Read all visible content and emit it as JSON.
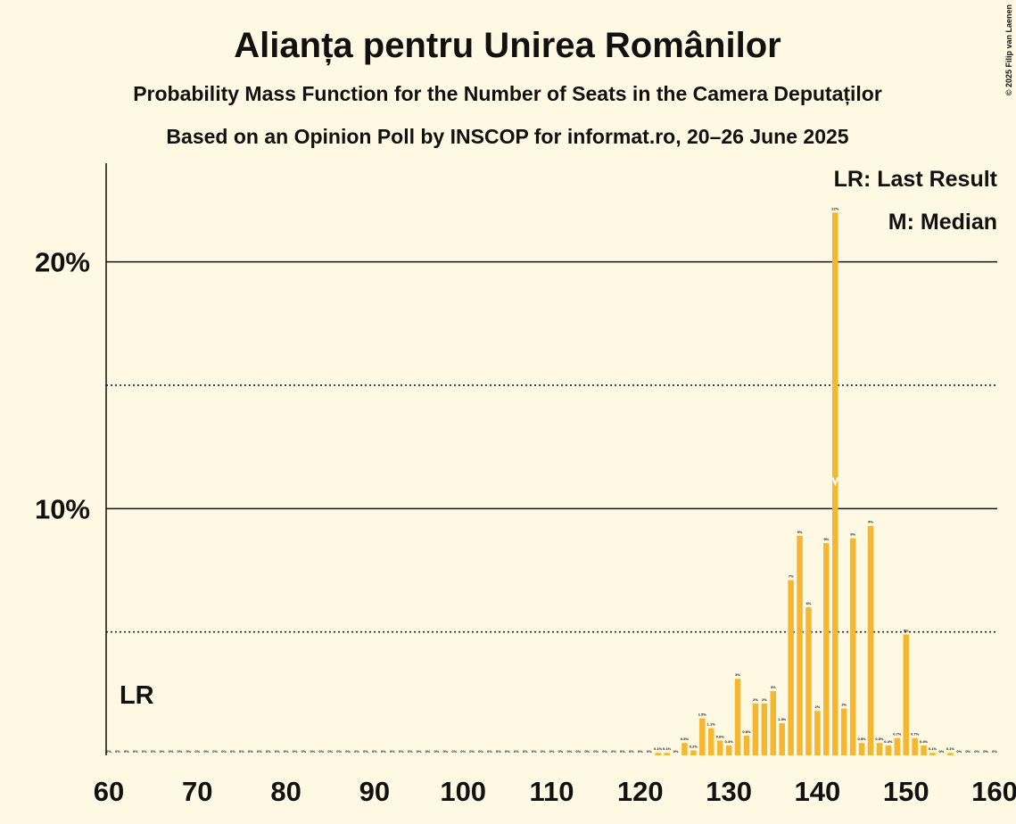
{
  "chart_data": {
    "type": "bar",
    "title": "Alianța pentru Unirea Românilor",
    "subtitle": "Probability Mass Function for the Number of Seats in the Camera Deputaților",
    "subtitle2": "Based on an Opinion Poll by INSCOP for informat.ro, 20–26 June 2025",
    "copyright": "© 2025 Filip van Laenen",
    "legend": [
      "LR: Last Result",
      "M: Median"
    ],
    "last_result": 60,
    "last_result_label": "LR",
    "median": 142,
    "color": "#f5b730",
    "x": [
      60,
      61,
      62,
      63,
      64,
      65,
      66,
      67,
      68,
      69,
      70,
      71,
      72,
      73,
      74,
      75,
      76,
      77,
      78,
      79,
      80,
      81,
      82,
      83,
      84,
      85,
      86,
      87,
      88,
      89,
      90,
      91,
      92,
      93,
      94,
      95,
      96,
      97,
      98,
      99,
      100,
      101,
      102,
      103,
      104,
      105,
      106,
      107,
      108,
      109,
      110,
      111,
      112,
      113,
      114,
      115,
      116,
      117,
      118,
      119,
      120,
      121,
      122,
      123,
      124,
      125,
      126,
      127,
      128,
      129,
      130,
      131,
      132,
      133,
      134,
      135,
      136,
      137,
      138,
      139,
      140,
      141,
      142,
      143,
      144,
      145,
      146,
      147,
      148,
      149,
      150,
      151,
      152,
      153,
      154,
      155,
      156,
      157,
      158,
      159,
      160
    ],
    "values": [
      0,
      0,
      0,
      0,
      0,
      0,
      0,
      0,
      0,
      0,
      0,
      0,
      0,
      0,
      0,
      0,
      0,
      0,
      0,
      0,
      0,
      0,
      0,
      0,
      0,
      0,
      0,
      0,
      0,
      0,
      0,
      0,
      0,
      0,
      0,
      0,
      0,
      0,
      0,
      0,
      0,
      0,
      0,
      0,
      0,
      0,
      0,
      0,
      0,
      0,
      0,
      0,
      0,
      0,
      0,
      0,
      0,
      0,
      0,
      0,
      0,
      0,
      0.1,
      0.1,
      0,
      0.5,
      0.2,
      1.5,
      1.1,
      0.6,
      0.4,
      3.1,
      0.8,
      2.1,
      2.1,
      2.6,
      1.3,
      7.1,
      8.9,
      6,
      1.8,
      8.6,
      22,
      1.9,
      8.8,
      0.5,
      9.3,
      0.5,
      0.4,
      0.7,
      4.9,
      0.7,
      0.4,
      0.1,
      0,
      0.1,
      0,
      0,
      0,
      0,
      0
    ],
    "value_labels": [
      "0%",
      "0%",
      "0%",
      "0%",
      "0%",
      "0%",
      "0%",
      "0%",
      "0%",
      "0%",
      "0%",
      "0%",
      "0%",
      "0%",
      "0%",
      "0%",
      "0%",
      "0%",
      "0%",
      "0%",
      "0%",
      "0%",
      "0%",
      "0%",
      "0%",
      "0%",
      "0%",
      "0%",
      "0%",
      "0%",
      "0%",
      "0%",
      "0%",
      "0%",
      "0%",
      "0%",
      "0%",
      "0%",
      "0%",
      "0%",
      "0%",
      "0%",
      "0%",
      "0%",
      "0%",
      "0%",
      "0%",
      "0%",
      "0%",
      "0%",
      "0%",
      "0%",
      "0%",
      "0%",
      "0%",
      "0%",
      "0%",
      "0%",
      "0%",
      "0%",
      "0%",
      "0%",
      "0.1%",
      "0.1%",
      "0%",
      "0.5%",
      "0.2%",
      "1.5%",
      "1.1%",
      "0.6%",
      "0.4%",
      "3%",
      "0.8%",
      "2%",
      "2%",
      "3%",
      "1.3%",
      "7%",
      "9%",
      "6%",
      "2%",
      "9%",
      "22%",
      "2%",
      "9%",
      "0.5%",
      "9%",
      "0.5%",
      "0.4%",
      "0.7%",
      "5%",
      "0.7%",
      "0.4%",
      "0.1%",
      "0%",
      "0.1%",
      "0%",
      "0%",
      "0%",
      "0%",
      "0%"
    ],
    "xlim": [
      59.7,
      160.3
    ],
    "xticks": [
      60,
      70,
      80,
      90,
      100,
      110,
      120,
      130,
      140,
      150,
      160
    ],
    "ylim": [
      0,
      24
    ],
    "yticks": [
      {
        "value": 10,
        "label": "10%"
      },
      {
        "value": 20,
        "label": "20%"
      }
    ],
    "minor_yticks": [
      5,
      15
    ]
  }
}
